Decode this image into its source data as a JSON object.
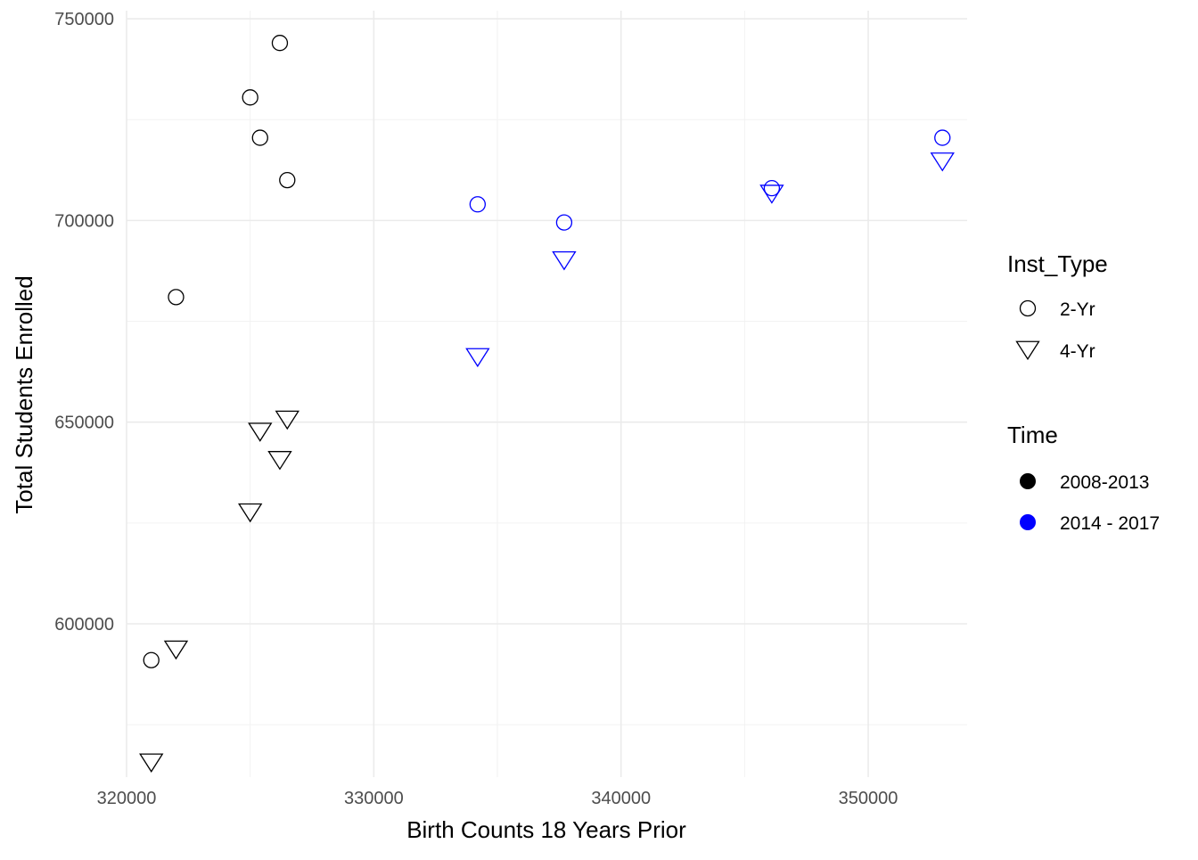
{
  "chart_data": {
    "type": "scatter",
    "title": "",
    "xlabel": "Birth Counts 18 Years Prior",
    "ylabel": "Total Students Enrolled",
    "xlim": [
      320000,
      354000
    ],
    "ylim": [
      562000,
      752000
    ],
    "x_ticks": [
      320000,
      330000,
      340000,
      350000
    ],
    "x_tick_labels": [
      "320000",
      "330000",
      "340000",
      "350000"
    ],
    "y_ticks": [
      600000,
      650000,
      700000,
      750000
    ],
    "y_tick_labels": [
      "600000",
      "650000",
      "700000",
      "750000"
    ],
    "grid": true,
    "legend_position": "right",
    "legends": [
      {
        "title": "Inst_Type",
        "entries": [
          {
            "label": "2-Yr",
            "shape": "circle"
          },
          {
            "label": "4-Yr",
            "shape": "triangle-down"
          }
        ]
      },
      {
        "title": "Time",
        "entries": [
          {
            "label": "2008-2013",
            "color": "#000000"
          },
          {
            "label": "2014 - 2017",
            "color": "#0000ff"
          }
        ]
      }
    ],
    "points": [
      {
        "x": 321000,
        "y": 591000,
        "inst_type": "2-Yr",
        "time": "2008-2013"
      },
      {
        "x": 322000,
        "y": 681000,
        "inst_type": "2-Yr",
        "time": "2008-2013"
      },
      {
        "x": 325000,
        "y": 730500,
        "inst_type": "2-Yr",
        "time": "2008-2013"
      },
      {
        "x": 325400,
        "y": 720500,
        "inst_type": "2-Yr",
        "time": "2008-2013"
      },
      {
        "x": 326200,
        "y": 744000,
        "inst_type": "2-Yr",
        "time": "2008-2013"
      },
      {
        "x": 326500,
        "y": 710000,
        "inst_type": "2-Yr",
        "time": "2008-2013"
      },
      {
        "x": 321000,
        "y": 566000,
        "inst_type": "4-Yr",
        "time": "2008-2013"
      },
      {
        "x": 322000,
        "y": 594000,
        "inst_type": "4-Yr",
        "time": "2008-2013"
      },
      {
        "x": 325000,
        "y": 628000,
        "inst_type": "4-Yr",
        "time": "2008-2013"
      },
      {
        "x": 325400,
        "y": 648000,
        "inst_type": "4-Yr",
        "time": "2008-2013"
      },
      {
        "x": 326200,
        "y": 641000,
        "inst_type": "4-Yr",
        "time": "2008-2013"
      },
      {
        "x": 326500,
        "y": 651000,
        "inst_type": "4-Yr",
        "time": "2008-2013"
      },
      {
        "x": 334200,
        "y": 704000,
        "inst_type": "2-Yr",
        "time": "2014 - 2017"
      },
      {
        "x": 337700,
        "y": 699500,
        "inst_type": "2-Yr",
        "time": "2014 - 2017"
      },
      {
        "x": 346100,
        "y": 708000,
        "inst_type": "2-Yr",
        "time": "2014 - 2017"
      },
      {
        "x": 353000,
        "y": 720500,
        "inst_type": "2-Yr",
        "time": "2014 - 2017"
      },
      {
        "x": 334200,
        "y": 666500,
        "inst_type": "4-Yr",
        "time": "2014 - 2017"
      },
      {
        "x": 337700,
        "y": 690500,
        "inst_type": "4-Yr",
        "time": "2014 - 2017"
      },
      {
        "x": 346100,
        "y": 707000,
        "inst_type": "4-Yr",
        "time": "2014 - 2017"
      },
      {
        "x": 353000,
        "y": 715000,
        "inst_type": "4-Yr",
        "time": "2014 - 2017"
      }
    ]
  }
}
